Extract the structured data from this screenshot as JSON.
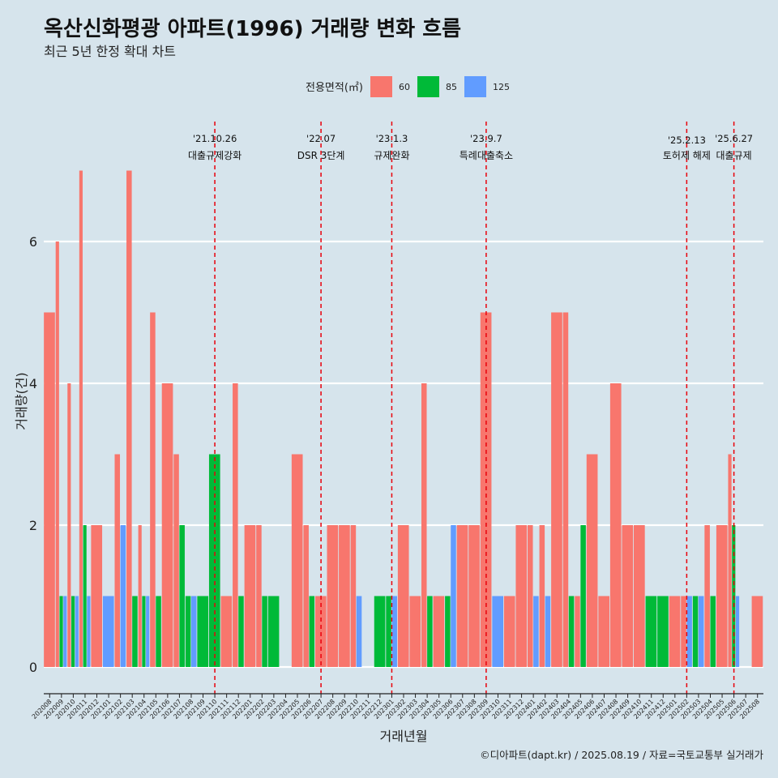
{
  "title": "옥산신화평광 아파트(1996) 거래량 변화 흐름",
  "subtitle": "최근 5년 한정 확대 차트",
  "caption": "©디아파트(dapt.kr) / 2025.08.19 / 자료=국토교통부 실거래가",
  "colors": {
    "background": "#d6e4ec",
    "60": "#f8766d",
    "85": "#00ba38",
    "125": "#619cff",
    "vline": "#e8000b"
  },
  "chart_data": {
    "type": "bar",
    "xlabel": "거래년월",
    "ylabel": "거래량(건)",
    "ylim": [
      -0.3,
      7.6
    ],
    "yticks": [
      0,
      2,
      4,
      6
    ],
    "grid": "horizontal",
    "legend": {
      "title": "전용면적(㎡)",
      "position": "top-center",
      "entries": [
        "60",
        "85",
        "125"
      ]
    },
    "categories": [
      "202008",
      "202009",
      "202010",
      "202011",
      "202012",
      "202101",
      "202102",
      "202103",
      "202104",
      "202105",
      "202106",
      "202107",
      "202108",
      "202109",
      "202110",
      "202111",
      "202112",
      "202201",
      "202202",
      "202203",
      "202204",
      "202205",
      "202206",
      "202207",
      "202208",
      "202209",
      "202210",
      "202211",
      "202212",
      "202301",
      "202302",
      "202303",
      "202304",
      "202305",
      "202306",
      "202307",
      "202308",
      "202309",
      "202310",
      "202311",
      "202312",
      "202401",
      "202402",
      "202403",
      "202404",
      "202405",
      "202406",
      "202407",
      "202408",
      "202409",
      "202410",
      "202411",
      "202412",
      "202501",
      "202502",
      "202503",
      "202504",
      "202505",
      "202506",
      "202507",
      "202508"
    ],
    "series": [
      {
        "name": "60",
        "values": [
          5,
          6,
          4,
          7,
          2,
          0,
          3,
          7,
          2,
          5,
          4,
          3,
          0,
          0,
          0,
          1,
          4,
          2,
          2,
          0,
          0,
          3,
          2,
          1,
          2,
          2,
          2,
          0,
          0,
          0,
          2,
          1,
          4,
          1,
          0,
          2,
          2,
          5,
          0,
          1,
          2,
          2,
          2,
          5,
          5,
          1,
          3,
          1,
          4,
          2,
          2,
          0,
          0,
          1,
          1,
          0,
          2,
          2,
          3,
          0,
          1
        ]
      },
      {
        "name": "85",
        "values": [
          0,
          1,
          1,
          2,
          0,
          0,
          0,
          1,
          1,
          1,
          0,
          2,
          1,
          1,
          3,
          0,
          1,
          0,
          1,
          1,
          0,
          0,
          1,
          0,
          0,
          0,
          0,
          0,
          1,
          1,
          0,
          0,
          1,
          0,
          1,
          0,
          0,
          0,
          0,
          0,
          0,
          0,
          0,
          0,
          1,
          2,
          0,
          0,
          0,
          0,
          0,
          1,
          1,
          0,
          0,
          1,
          1,
          0,
          2,
          0,
          0
        ]
      },
      {
        "name": "125",
        "values": [
          0,
          1,
          1,
          1,
          0,
          1,
          2,
          0,
          1,
          0,
          0,
          0,
          1,
          0,
          0,
          0,
          0,
          0,
          0,
          0,
          0,
          0,
          0,
          0,
          0,
          0,
          1,
          0,
          0,
          1,
          0,
          0,
          0,
          0,
          2,
          0,
          0,
          0,
          1,
          0,
          0,
          1,
          1,
          0,
          0,
          0,
          0,
          0,
          0,
          0,
          0,
          0,
          0,
          0,
          1,
          1,
          0,
          0,
          1,
          0,
          0
        ]
      }
    ],
    "annotations": [
      {
        "at": "202110",
        "date": "'21.10.26",
        "label": "대출규제강화"
      },
      {
        "at": "202207",
        "date": "'22.07",
        "label": "DSR 3단계"
      },
      {
        "at": "202301",
        "date": "'23.1.3",
        "label": "규제완화"
      },
      {
        "at": "202309",
        "date": "'23.9.7",
        "label": "특례대출축소"
      },
      {
        "at": "202502",
        "date": "'25.2.13",
        "label": "토허제 해제"
      },
      {
        "at": "202506",
        "date": "'25.6.27",
        "label": "대출규제"
      }
    ]
  }
}
